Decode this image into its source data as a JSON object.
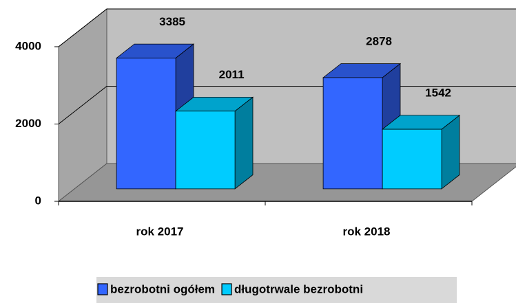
{
  "chart_data": {
    "type": "bar3d",
    "categories": [
      "rok 2017",
      "rok 2018"
    ],
    "series": [
      {
        "name": "bezrobotni ogółem",
        "color": "#3366ff",
        "values": [
          3385,
          2878
        ]
      },
      {
        "name": "długotrwale bezrobotni",
        "color": "#00ccff",
        "values": [
          2011,
          1542
        ]
      }
    ],
    "ylim": [
      0,
      4000
    ],
    "yticks": [
      0,
      2000,
      4000
    ],
    "grid": true,
    "legend": "bottom"
  }
}
